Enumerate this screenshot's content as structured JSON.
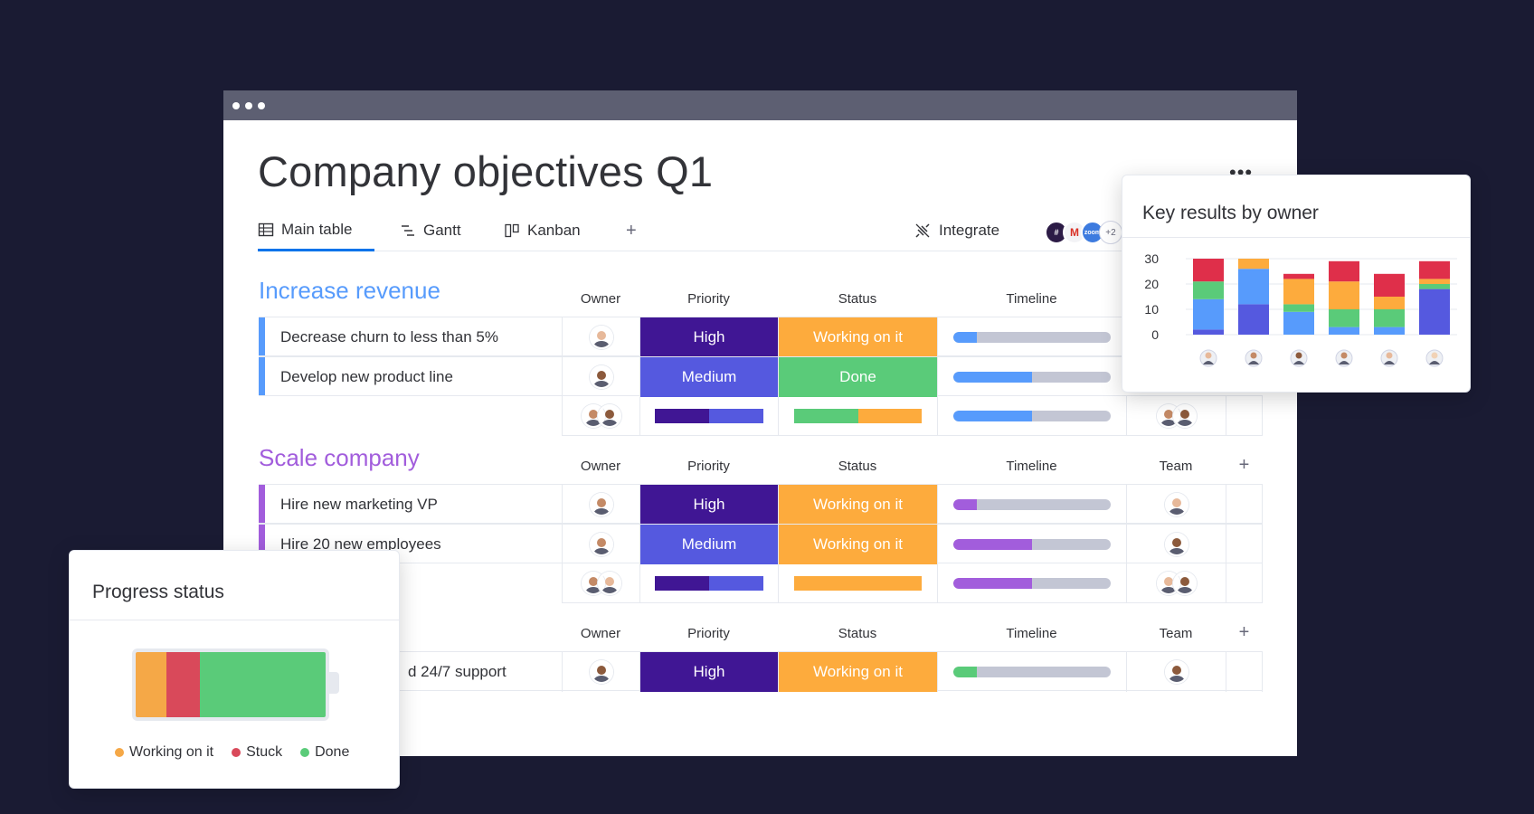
{
  "window": {
    "title": "Company objectives Q1",
    "more_label": "•••"
  },
  "tabs": [
    {
      "label": "Main table",
      "icon": "table-icon",
      "active": true
    },
    {
      "label": "Gantt",
      "icon": "gantt-icon",
      "active": false
    },
    {
      "label": "Kanban",
      "icon": "kanban-icon",
      "active": false
    }
  ],
  "add_tab_label": "+",
  "integrate": {
    "label": "Integrate",
    "icons": [
      "slack-icon",
      "gmail-icon",
      "zoom-icon"
    ],
    "gmail_text": "M",
    "zoom_text": "zoom",
    "more_count": "+2"
  },
  "columns": {
    "owner": "Owner",
    "priority": "Priority",
    "status": "Status",
    "timeline": "Timeline",
    "team": "Team",
    "add": "+"
  },
  "colors": {
    "high": "#401694",
    "medium": "#5559df",
    "working": "#fdab3d",
    "done": "#00c875",
    "stuck": "#df2f4a",
    "group1": "#579bfc",
    "group2": "#a25ddc",
    "tl_blue": "#579bfc",
    "tl_purple": "#a25ddc",
    "tl_green": "#5acb79"
  },
  "groups": [
    {
      "title": "Increase revenue",
      "rows": [
        {
          "name": "Decrease churn to less than 5%",
          "priority": "High",
          "status": "Working on it",
          "timeline_progress": 0.15
        },
        {
          "name": "Develop new product line",
          "priority": "Medium",
          "status": "Done",
          "timeline_progress": 0.5
        }
      ],
      "summary_timeline_progress": 0.5
    },
    {
      "title": "Scale company",
      "rows": [
        {
          "name": "Hire new marketing VP",
          "priority": "High",
          "status": "Working on it",
          "timeline_progress": 0.15
        },
        {
          "name": "Hire 20 new employees",
          "priority": "Medium",
          "status": "Working on it",
          "timeline_progress": 0.5
        }
      ],
      "summary_timeline_progress": 0.5
    },
    {
      "title": "",
      "rows": [
        {
          "name": "d 24/7 support",
          "priority": "High",
          "status": "Working on it",
          "timeline_progress": 0.15
        }
      ]
    }
  ],
  "chart_card": {
    "title": "Key results by owner"
  },
  "chart_data": {
    "type": "bar",
    "stacked": true,
    "categories": [
      "owner-1",
      "owner-2",
      "owner-3",
      "owner-4",
      "owner-5",
      "owner-6"
    ],
    "y_ticks": [
      "30",
      "20",
      "10",
      "0"
    ],
    "ylim": [
      0,
      30
    ],
    "grid": true,
    "series": [
      {
        "color": "#5559df",
        "values": [
          2,
          12,
          0,
          0,
          0,
          18
        ]
      },
      {
        "color": "#579bfc",
        "values": [
          12,
          14,
          9,
          3,
          3,
          0
        ]
      },
      {
        "color": "#5acb79",
        "values": [
          7,
          0,
          3,
          7,
          7,
          2
        ]
      },
      {
        "color": "#fdab3d",
        "values": [
          0,
          4,
          10,
          11,
          5,
          2
        ]
      },
      {
        "color": "#df2f4a",
        "values": [
          9,
          0,
          2,
          8,
          9,
          7
        ]
      }
    ]
  },
  "progress_card": {
    "title": "Progress status",
    "segments": [
      {
        "label": "Working on it",
        "color": "#f5a847",
        "fraction": 0.16
      },
      {
        "label": "Stuck",
        "color": "#d9495a",
        "fraction": 0.18
      },
      {
        "label": "Done",
        "color": "#5acb79",
        "fraction": 0.66
      }
    ]
  }
}
